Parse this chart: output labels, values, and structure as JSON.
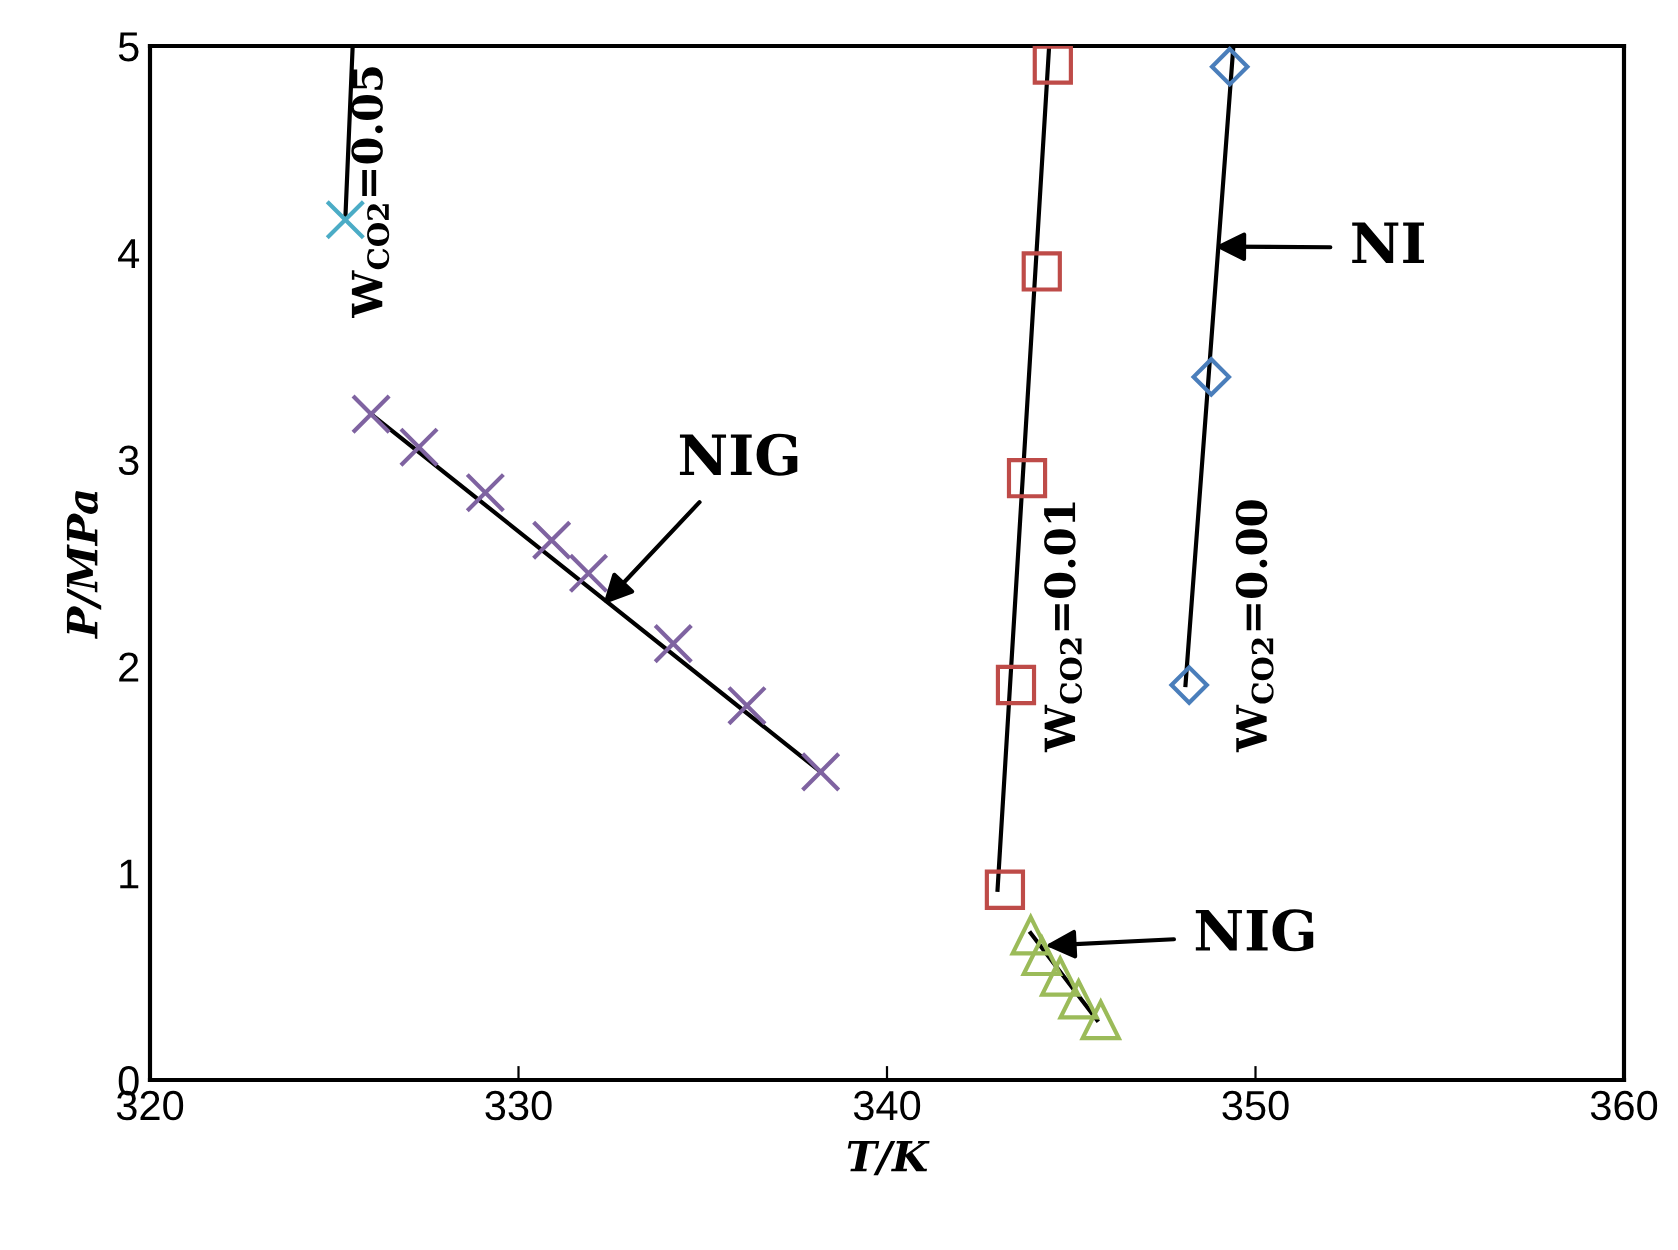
{
  "chart_data": {
    "type": "scatter",
    "xlabel": "T/K",
    "ylabel": "P/MPa",
    "xlim": [
      320,
      360
    ],
    "ylim": [
      0,
      5
    ],
    "xticks": [
      320,
      330,
      340,
      350,
      360
    ],
    "yticks": [
      0,
      1,
      2,
      3,
      4,
      5
    ],
    "grid": false,
    "legend": false,
    "series": [
      {
        "marker": "diamond",
        "color": "#4a7ebb",
        "x": [
          349.3,
          348.8,
          348.2
        ],
        "values": [
          4.9,
          3.4,
          1.91
        ]
      },
      {
        "marker": "square",
        "color": "#be4b48",
        "x": [
          344.5,
          344.2,
          343.8,
          343.5,
          343.2
        ],
        "values": [
          4.91,
          3.91,
          2.91,
          1.91,
          0.92
        ]
      },
      {
        "marker": "triangle",
        "color": "#9bbb59",
        "x": [
          343.9,
          344.2,
          344.7,
          345.2,
          345.8
        ],
        "values": [
          0.7,
          0.6,
          0.5,
          0.39,
          0.29
        ]
      },
      {
        "marker": "cross",
        "color": "#4bacc6",
        "x": [
          325.3
        ],
        "values": [
          4.16
        ]
      },
      {
        "marker": "cross",
        "color": "#7f63a1",
        "x": [
          326.0,
          327.3,
          329.1,
          330.9,
          331.9,
          334.2,
          336.2,
          338.2
        ],
        "values": [
          3.22,
          3.06,
          2.84,
          2.61,
          2.45,
          2.11,
          1.81,
          1.49
        ]
      },
      {
        "type": "line",
        "color": "#000000",
        "x": [
          348.1,
          349.4
        ],
        "values": [
          1.91,
          5.0
        ]
      },
      {
        "type": "line",
        "color": "#000000",
        "x": [
          343.0,
          344.4
        ],
        "values": [
          0.92,
          5.0
        ]
      },
      {
        "type": "line",
        "color": "#000000",
        "x": [
          343.9,
          345.7
        ],
        "values": [
          0.71,
          0.29
        ]
      },
      {
        "type": "line",
        "color": "#000000",
        "x": [
          325.3,
          325.5
        ],
        "values": [
          4.16,
          5.0
        ]
      },
      {
        "type": "line",
        "color": "#000000",
        "x": [
          326.0,
          338.2
        ],
        "values": [
          3.22,
          1.49
        ]
      }
    ],
    "annotations": [
      {
        "text": "NIG",
        "x": 332.3,
        "y": 2.3
      },
      {
        "text": "NI",
        "x": 348.9,
        "y": 4.03
      },
      {
        "text": "NIG",
        "x": 344.3,
        "y": 0.65
      },
      "W$_{CO2}$=0.05",
      "W$_{CO2}$=0.01",
      "W$_{CO2}$=0.00"
    ]
  }
}
